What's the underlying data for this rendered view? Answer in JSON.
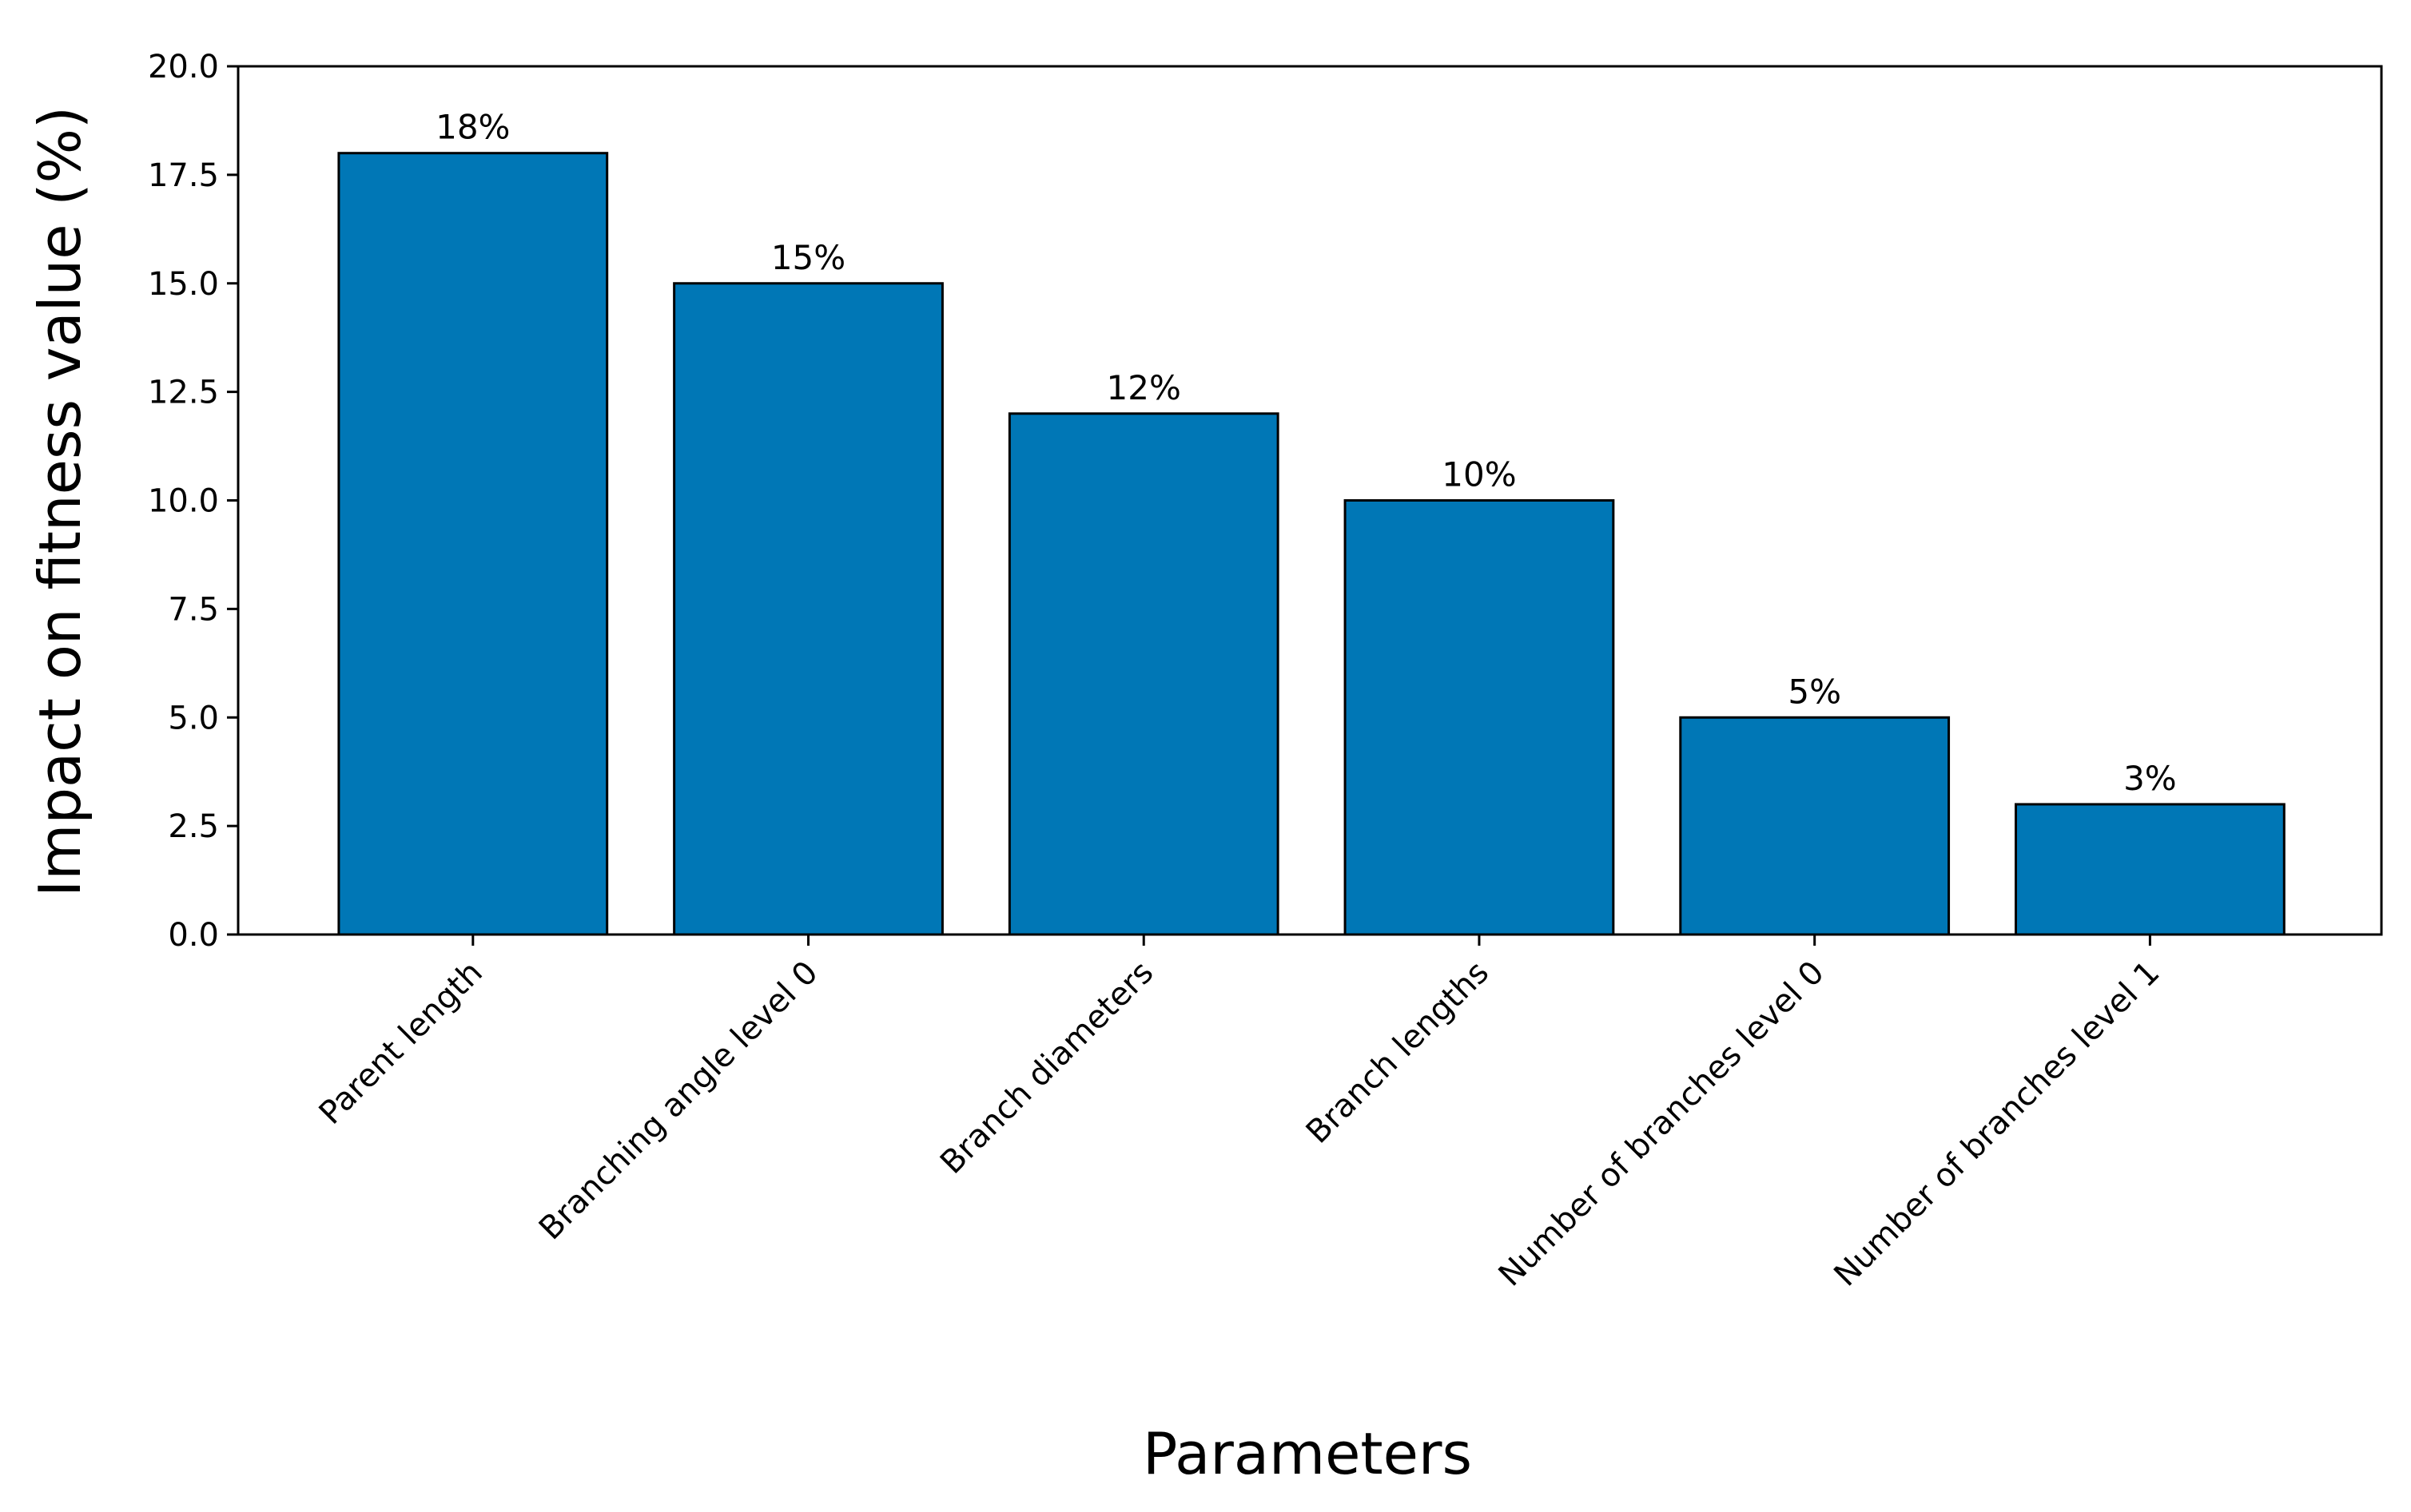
{
  "chart_data": {
    "type": "bar",
    "title": "",
    "xlabel": "Parameters",
    "ylabel": "Impact on fitness value (%)",
    "categories": [
      "Parent length",
      "Branching angle level 0",
      "Branch diameters",
      "Branch lengths",
      "Number of branches level 0",
      "Number of branches level 1"
    ],
    "values": [
      18,
      15,
      12,
      10,
      5,
      3
    ],
    "data_labels": [
      "18%",
      "15%",
      "12%",
      "10%",
      "5%",
      "3%"
    ],
    "ylim": [
      0,
      20
    ],
    "yticks": [
      "0.0",
      "2.5",
      "5.0",
      "7.5",
      "10.0",
      "12.5",
      "15.0",
      "17.5",
      "20.0"
    ],
    "grid": false,
    "bar_color": "#0077b6",
    "edge_color": "#000000"
  }
}
